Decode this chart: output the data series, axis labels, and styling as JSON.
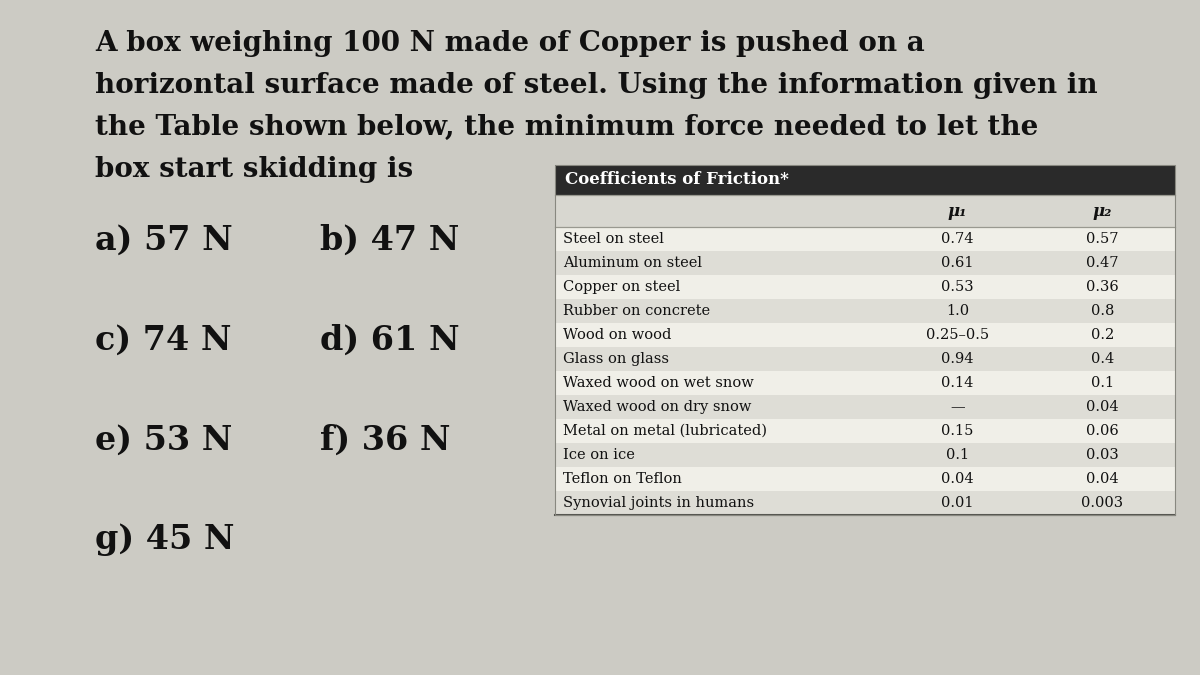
{
  "question_lines": [
    "A box weighing 100 N made of Copper is pushed on a",
    "horizontal surface made of steel. Using the information given in",
    "the Table shown below, the minimum force needed to let the",
    "box start skidding is"
  ],
  "choices": [
    [
      "a) 57 N",
      "b) 47 N"
    ],
    [
      "c) 74 N",
      "d) 61 N"
    ],
    [
      "e) 53 N",
      "f) 36 N"
    ],
    [
      "g) 45 N",
      ""
    ]
  ],
  "table_title": "Coefficients of Friction*",
  "col_headers": [
    "μ₁",
    "μ₂"
  ],
  "table_rows": [
    [
      "Steel on steel",
      "0.74",
      "0.57"
    ],
    [
      "Aluminum on steel",
      "0.61",
      "0.47"
    ],
    [
      "Copper on steel",
      "0.53",
      "0.36"
    ],
    [
      "Rubber on concrete",
      "1.0",
      "0.8"
    ],
    [
      "Wood on wood",
      "0.25–0.5",
      "0.2"
    ],
    [
      "Glass on glass",
      "0.94",
      "0.4"
    ],
    [
      "Waxed wood on wet snow",
      "0.14",
      "0.1"
    ],
    [
      "Waxed wood on dry snow",
      "—",
      "0.04"
    ],
    [
      "Metal on metal (lubricated)",
      "0.15",
      "0.06"
    ],
    [
      "Ice on ice",
      "0.1",
      "0.03"
    ],
    [
      "Teflon on Teflon",
      "0.04",
      "0.04"
    ],
    [
      "Synovial joints in humans",
      "0.01",
      "0.003"
    ]
  ],
  "bg_color": "#cccbc4",
  "table_bg": "#e8e7e0",
  "table_header_bg": "#2a2a2a",
  "table_header_fg": "#ffffff",
  "table_col_header_bg": "#d8d7d0",
  "table_row_light": "#f0efe8",
  "table_row_dark": "#deddD6",
  "text_color": "#111111",
  "choice_fontsize": 24,
  "question_fontsize": 20,
  "table_title_fontsize": 12,
  "table_header_fontsize": 12,
  "table_content_fontsize": 10.5
}
